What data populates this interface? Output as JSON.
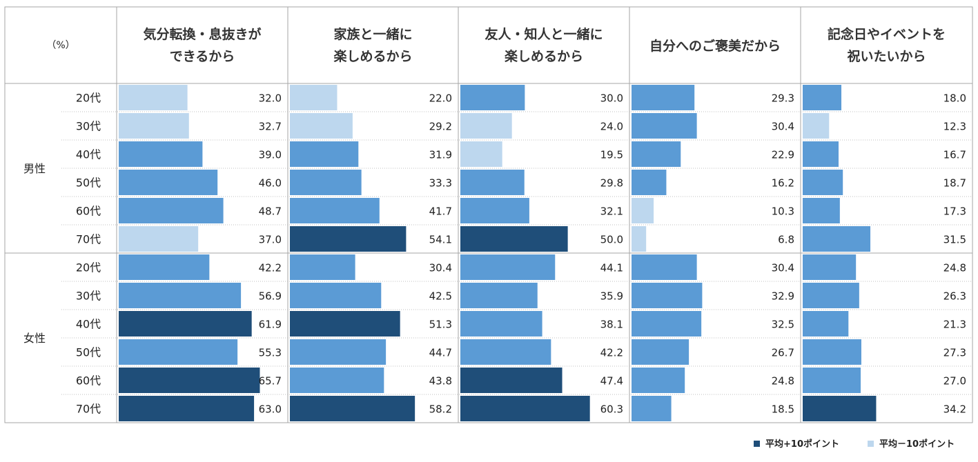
{
  "chart_data": {
    "type": "table",
    "unit_label": "（%）",
    "columns": [
      [
        "気分転換・息抜きが",
        "できるから"
      ],
      [
        "家族と一緒に",
        "楽しめるから"
      ],
      [
        "友人・知人と一緒に",
        "楽しめるから"
      ],
      [
        "自分へのご褒美だから"
      ],
      [
        "記念日やイベントを",
        "祝いたいから"
      ]
    ],
    "groups": [
      {
        "name": "男性",
        "rows": [
          {
            "age": "20代",
            "values": [
              32.0,
              22.0,
              30.0,
              29.3,
              18.0
            ],
            "labels": [
              "32.0",
              "22.0",
              "30.0",
              "29.3",
              "18.0"
            ],
            "levels": [
              "low",
              "low",
              "mid",
              "mid",
              "mid"
            ]
          },
          {
            "age": "30代",
            "values": [
              32.7,
              29.2,
              24.0,
              30.4,
              12.3
            ],
            "labels": [
              "32.7",
              "29.2",
              "24.0",
              "30.4",
              "12.3"
            ],
            "levels": [
              "low",
              "low",
              "low",
              "mid",
              "low"
            ]
          },
          {
            "age": "40代",
            "values": [
              39.0,
              31.9,
              19.5,
              22.9,
              16.7
            ],
            "labels": [
              "39.0",
              "31.9",
              "19.5",
              "22.9",
              "16.7"
            ],
            "levels": [
              "mid",
              "mid",
              "low",
              "mid",
              "mid"
            ]
          },
          {
            "age": "50代",
            "values": [
              46.0,
              33.3,
              29.8,
              16.2,
              18.7
            ],
            "labels": [
              "46.0",
              "33.3",
              "29.8",
              "16.2",
              "18.7"
            ],
            "levels": [
              "mid",
              "mid",
              "mid",
              "mid",
              "mid"
            ]
          },
          {
            "age": "60代",
            "values": [
              48.7,
              41.7,
              32.1,
              10.3,
              17.3
            ],
            "labels": [
              "48.7",
              "41.7",
              "32.1",
              "10.3",
              "17.3"
            ],
            "levels": [
              "mid",
              "mid",
              "mid",
              "low",
              "mid"
            ]
          },
          {
            "age": "70代",
            "values": [
              37.0,
              54.1,
              50.0,
              6.8,
              31.5
            ],
            "labels": [
              "37.0",
              "54.1",
              "50.0",
              "6.8",
              "31.5"
            ],
            "levels": [
              "low",
              "high",
              "high",
              "low",
              "mid"
            ]
          }
        ]
      },
      {
        "name": "女性",
        "rows": [
          {
            "age": "20代",
            "values": [
              42.2,
              30.4,
              44.1,
              30.4,
              24.8
            ],
            "labels": [
              "42.2",
              "30.4",
              "44.1",
              "30.4",
              "24.8"
            ],
            "levels": [
              "mid",
              "mid",
              "mid",
              "mid",
              "mid"
            ]
          },
          {
            "age": "30代",
            "values": [
              56.9,
              42.5,
              35.9,
              32.9,
              26.3
            ],
            "labels": [
              "56.9",
              "42.5",
              "35.9",
              "32.9",
              "26.3"
            ],
            "levels": [
              "mid",
              "mid",
              "mid",
              "mid",
              "mid"
            ]
          },
          {
            "age": "40代",
            "values": [
              61.9,
              51.3,
              38.1,
              32.5,
              21.3
            ],
            "labels": [
              "61.9",
              "51.3",
              "38.1",
              "32.5",
              "21.3"
            ],
            "levels": [
              "high",
              "high",
              "mid",
              "mid",
              "mid"
            ]
          },
          {
            "age": "50代",
            "values": [
              55.3,
              44.7,
              42.2,
              26.7,
              27.3
            ],
            "labels": [
              "55.3",
              "44.7",
              "42.2",
              "26.7",
              "27.3"
            ],
            "levels": [
              "mid",
              "mid",
              "mid",
              "mid",
              "mid"
            ]
          },
          {
            "age": "60代",
            "values": [
              65.7,
              43.8,
              47.4,
              24.8,
              27.0
            ],
            "labels": [
              "65.7",
              "43.8",
              "47.4",
              "24.8",
              "27.0"
            ],
            "levels": [
              "high",
              "mid",
              "high",
              "mid",
              "mid"
            ]
          },
          {
            "age": "70代",
            "values": [
              63.0,
              58.2,
              60.3,
              18.5,
              34.2
            ],
            "labels": [
              "63.0",
              "58.2",
              "60.3",
              "18.5",
              "34.2"
            ],
            "levels": [
              "high",
              "high",
              "high",
              "mid",
              "high"
            ]
          }
        ]
      }
    ],
    "value_max": 80,
    "colors": {
      "high": "#1f4e79",
      "mid": "#5b9bd5",
      "low": "#bdd7ee"
    },
    "legend": [
      {
        "level": "high",
        "label": "平均+10ポイント"
      },
      {
        "level": "low",
        "label": "平均－10ポイント"
      }
    ]
  }
}
